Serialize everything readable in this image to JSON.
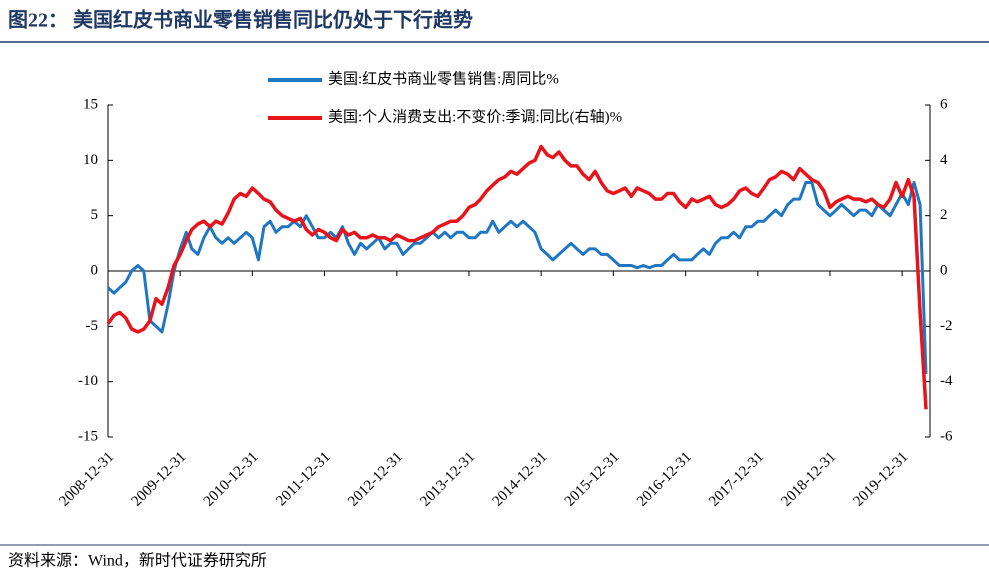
{
  "chart_data": {
    "type": "line",
    "title": "图22：  美国红皮书商业零售销售同比仍处于下行趋势",
    "source": "资料来源：Wind，新时代证券研究所",
    "x": [
      "2008-12-31",
      "2009-01-31",
      "2009-02-28",
      "2009-03-31",
      "2009-04-30",
      "2009-05-31",
      "2009-06-30",
      "2009-07-31",
      "2009-08-31",
      "2009-09-30",
      "2009-10-31",
      "2009-11-30",
      "2009-12-31",
      "2010-01-31",
      "2010-02-28",
      "2010-03-31",
      "2010-04-30",
      "2010-05-31",
      "2010-06-30",
      "2010-07-31",
      "2010-08-31",
      "2010-09-30",
      "2010-10-31",
      "2010-11-30",
      "2010-12-31",
      "2011-01-31",
      "2011-02-28",
      "2011-03-31",
      "2011-04-30",
      "2011-05-31",
      "2011-06-30",
      "2011-07-31",
      "2011-08-31",
      "2011-09-30",
      "2011-10-31",
      "2011-11-30",
      "2011-12-31",
      "2012-01-31",
      "2012-02-29",
      "2012-03-31",
      "2012-04-30",
      "2012-05-31",
      "2012-06-30",
      "2012-07-31",
      "2012-08-31",
      "2012-09-30",
      "2012-10-31",
      "2012-11-30",
      "2012-12-31",
      "2013-01-31",
      "2013-02-28",
      "2013-03-31",
      "2013-04-30",
      "2013-05-31",
      "2013-06-30",
      "2013-07-31",
      "2013-08-31",
      "2013-09-30",
      "2013-10-31",
      "2013-11-30",
      "2013-12-31",
      "2014-01-31",
      "2014-02-28",
      "2014-03-31",
      "2014-04-30",
      "2014-05-31",
      "2014-06-30",
      "2014-07-31",
      "2014-08-31",
      "2014-09-30",
      "2014-10-31",
      "2014-11-30",
      "2014-12-31",
      "2015-01-31",
      "2015-02-28",
      "2015-03-31",
      "2015-04-30",
      "2015-05-31",
      "2015-06-30",
      "2015-07-31",
      "2015-08-31",
      "2015-09-30",
      "2015-10-31",
      "2015-11-30",
      "2015-12-31",
      "2016-01-31",
      "2016-02-29",
      "2016-03-31",
      "2016-04-30",
      "2016-05-31",
      "2016-06-30",
      "2016-07-31",
      "2016-08-31",
      "2016-09-30",
      "2016-10-31",
      "2016-11-30",
      "2016-12-31",
      "2017-01-31",
      "2017-02-28",
      "2017-03-31",
      "2017-04-30",
      "2017-05-31",
      "2017-06-30",
      "2017-07-31",
      "2017-08-31",
      "2017-09-30",
      "2017-10-31",
      "2017-11-30",
      "2017-12-31",
      "2018-01-31",
      "2018-02-28",
      "2018-03-31",
      "2018-04-30",
      "2018-05-31",
      "2018-06-30",
      "2018-07-31",
      "2018-08-31",
      "2018-09-30",
      "2018-10-31",
      "2018-11-30",
      "2018-12-31",
      "2019-01-31",
      "2019-02-28",
      "2019-03-31",
      "2019-04-30",
      "2019-05-31",
      "2019-06-30",
      "2019-07-31",
      "2019-08-31",
      "2019-09-30",
      "2019-10-31",
      "2019-11-30",
      "2019-12-31",
      "2020-01-31",
      "2020-02-29",
      "2020-03-31",
      "2020-04-30"
    ],
    "series": [
      {
        "name": "美国:红皮书商业零售销售:周同比%",
        "color": "#1f77c4",
        "axis": "y",
        "values": [
          -1.5,
          -2,
          -1.5,
          -1,
          0,
          0.5,
          0,
          -4.5,
          -5,
          -5.5,
          -3,
          0,
          2,
          3.5,
          2,
          1.5,
          3,
          4,
          3,
          2.5,
          3,
          2.5,
          3,
          3.5,
          3,
          1,
          4,
          4.5,
          3.5,
          4,
          4,
          4.5,
          4,
          5,
          4,
          3,
          3,
          3.5,
          3,
          4,
          2.5,
          1.5,
          2.5,
          2,
          2.5,
          3,
          2,
          2.5,
          2.5,
          1.5,
          2,
          2.5,
          2.5,
          3,
          3.5,
          3,
          3.5,
          3,
          3.5,
          3.5,
          3,
          3,
          3.5,
          3.5,
          4.5,
          3.5,
          4,
          4.5,
          4,
          4.5,
          4,
          3.5,
          2,
          1.5,
          1,
          1.5,
          2,
          2.5,
          2,
          1.5,
          2,
          2,
          1.5,
          1.5,
          1,
          0.5,
          0.5,
          0.5,
          0.3,
          0.5,
          0.3,
          0.5,
          0.5,
          1,
          1.5,
          1,
          1,
          1,
          1.5,
          2,
          1.5,
          2.5,
          3,
          3,
          3.5,
          3,
          4,
          4,
          4.5,
          4.5,
          5,
          5.5,
          5,
          6,
          6.5,
          6.5,
          8,
          8,
          6,
          5.5,
          5,
          5.5,
          6,
          5.5,
          5,
          5.5,
          5.5,
          5,
          6,
          5.5,
          5,
          6,
          7,
          6,
          8,
          6,
          -9.3
        ]
      },
      {
        "name": "美国:个人消费支出:不变价:季调:同比(右轴)%",
        "color": "#e8141b",
        "axis": "y2",
        "values": [
          -1.9,
          -1.6,
          -1.5,
          -1.7,
          -2.1,
          -2.2,
          -2.1,
          -1.8,
          -1.0,
          -1.2,
          -0.6,
          0.2,
          0.6,
          1.1,
          1.5,
          1.7,
          1.8,
          1.6,
          1.8,
          1.7,
          2.1,
          2.6,
          2.8,
          2.7,
          3.0,
          2.8,
          2.6,
          2.5,
          2.2,
          2.0,
          1.9,
          1.8,
          1.9,
          1.5,
          1.3,
          1.5,
          1.4,
          1.2,
          1.1,
          1.5,
          1.3,
          1.4,
          1.2,
          1.2,
          1.3,
          1.2,
          1.2,
          1.1,
          1.3,
          1.2,
          1.1,
          1.1,
          1.2,
          1.3,
          1.4,
          1.6,
          1.7,
          1.8,
          1.8,
          2.0,
          2.3,
          2.4,
          2.6,
          2.9,
          3.1,
          3.3,
          3.4,
          3.6,
          3.5,
          3.7,
          3.9,
          4.0,
          4.5,
          4.2,
          4.1,
          4.3,
          4.0,
          3.8,
          3.8,
          3.5,
          3.3,
          3.6,
          3.2,
          2.9,
          2.8,
          2.9,
          3.0,
          2.7,
          3.0,
          2.9,
          2.8,
          2.6,
          2.6,
          2.8,
          2.8,
          2.5,
          2.3,
          2.6,
          2.5,
          2.6,
          2.7,
          2.4,
          2.3,
          2.4,
          2.6,
          2.9,
          3.0,
          2.8,
          2.7,
          3.0,
          3.3,
          3.4,
          3.6,
          3.5,
          3.3,
          3.7,
          3.5,
          3.3,
          3.2,
          2.9,
          2.3,
          2.5,
          2.6,
          2.7,
          2.6,
          2.6,
          2.5,
          2.6,
          2.4,
          2.3,
          2.6,
          3.2,
          2.7,
          3.3,
          2.7,
          -1.5,
          -5.0
        ]
      }
    ],
    "xlim": [
      "2008-12-31",
      "2020-05-20"
    ],
    "xticks": [
      "2008-12-31",
      "2009-12-31",
      "2010-12-31",
      "2011-12-31",
      "2012-12-31",
      "2013-12-31",
      "2014-12-31",
      "2015-12-31",
      "2016-12-31",
      "2017-12-31",
      "2018-12-31",
      "2019-12-31"
    ],
    "ylim": [
      -15,
      15
    ],
    "yticks": [
      -15,
      -10,
      -5,
      0,
      5,
      10,
      15
    ],
    "y2lim": [
      -6,
      6
    ],
    "y2ticks": [
      -6,
      -4,
      -2,
      0,
      2,
      4,
      6
    ],
    "legend": "top"
  }
}
